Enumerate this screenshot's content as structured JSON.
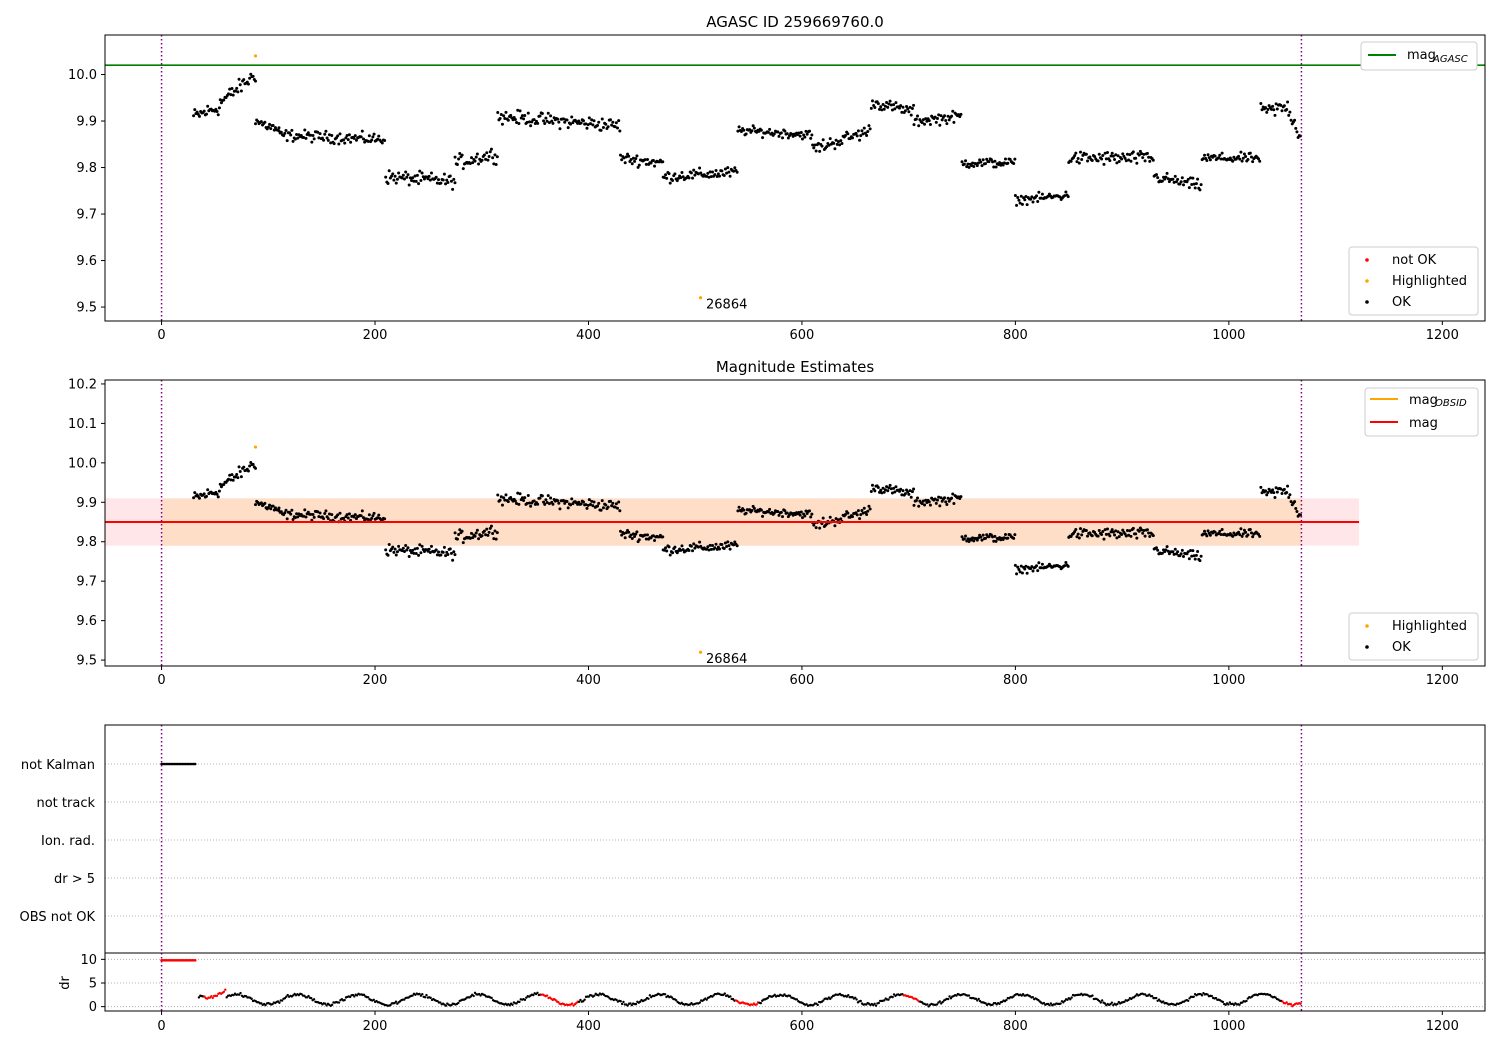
{
  "chart_data": [
    {
      "type": "scatter",
      "title": "AGASC ID 259669760.0",
      "xlim": [
        -53,
        1240
      ],
      "ylim": [
        9.47,
        10.085
      ],
      "xticks": [
        0,
        200,
        400,
        600,
        800,
        1000,
        1200
      ],
      "yticks": [
        9.5,
        9.6,
        9.7,
        9.8,
        9.9,
        10.0
      ],
      "yticklabels": [
        "9.5",
        "9.6",
        "9.7",
        "9.8",
        "9.9",
        "10.0"
      ],
      "grid": false,
      "vlines": [
        0,
        1068
      ],
      "hline": {
        "y": 10.02,
        "color": "#008000"
      },
      "legends": [
        {
          "placement": "top-right",
          "entries": [
            {
              "label": "mag",
              "sub": "AGASC",
              "color": "#008000",
              "kind": "line"
            }
          ]
        },
        {
          "placement": "bottom-right",
          "entries": [
            {
              "label": "not OK",
              "color": "#ff0000",
              "kind": "dot"
            },
            {
              "label": "Highlighted",
              "color": "#ffa500",
              "kind": "dot"
            },
            {
              "label": "OK",
              "color": "#000000",
              "kind": "dot"
            }
          ]
        }
      ],
      "series": [
        {
          "name": "OK",
          "segments": "ok"
        }
      ],
      "highlighted_points": [
        {
          "x": 88,
          "y": 10.04
        },
        {
          "x": 505,
          "y": 9.52
        }
      ],
      "annotations": [
        {
          "text": "26864",
          "x": 512,
          "y": 9.52
        }
      ]
    },
    {
      "type": "scatter",
      "title": "Magnitude Estimates",
      "xlim": [
        -53,
        1240
      ],
      "ylim": [
        9.485,
        10.21
      ],
      "xticks": [
        0,
        200,
        400,
        600,
        800,
        1000,
        1200
      ],
      "yticks": [
        9.5,
        9.6,
        9.7,
        9.8,
        9.9,
        10.0,
        10.1,
        10.2
      ],
      "yticklabels": [
        "9.5",
        "9.6",
        "9.7",
        "9.8",
        "9.9",
        "10.0",
        "10.1",
        "10.2"
      ],
      "grid": false,
      "vlines": [
        0,
        1068
      ],
      "mag_line": {
        "y": 9.85,
        "x_end": 1122,
        "color": "#ff0000"
      },
      "mag_band": {
        "y0": 9.79,
        "y1": 9.91,
        "x_end": 1122,
        "color": "#ffb6c1"
      },
      "obsid_band": {
        "y0": 9.79,
        "y1": 9.91,
        "x_start": 0,
        "x_end": 1068,
        "color": "#ffdab9"
      },
      "legends": [
        {
          "placement": "top-right",
          "entries": [
            {
              "label": "mag",
              "sub": "OBSID",
              "color": "#ffa500",
              "kind": "line"
            },
            {
              "label": "mag",
              "sub": "",
              "color": "#ff0000",
              "kind": "line"
            }
          ]
        },
        {
          "placement": "bottom-right",
          "entries": [
            {
              "label": "Highlighted",
              "color": "#ffa500",
              "kind": "dot"
            },
            {
              "label": "OK",
              "color": "#000000",
              "kind": "dot"
            }
          ]
        }
      ],
      "series": [
        {
          "name": "OK",
          "segments": "ok"
        }
      ],
      "highlighted_points": [
        {
          "x": 88,
          "y": 10.04
        },
        {
          "x": 505,
          "y": 9.52
        }
      ],
      "annotations": [
        {
          "text": "26864",
          "x": 512,
          "y": 9.52
        }
      ]
    },
    {
      "type": "scatter",
      "title": "",
      "xlim": [
        -53,
        1240
      ],
      "xticks": [
        0,
        200,
        400,
        600,
        800,
        1000,
        1200
      ],
      "flag_labels": [
        "not Kalman",
        "not track",
        "Ion. rad.",
        "dr > 5",
        "OBS not OK"
      ],
      "flag_points": [
        {
          "flag": "not Kalman",
          "x_start": 0,
          "x_end": 32
        }
      ],
      "dr_ylabel": "dr",
      "dr_yticks": [
        0,
        5,
        10
      ],
      "dr_ylim": [
        -0.5,
        10.5
      ],
      "vlines": [
        0,
        1068
      ],
      "dr_high": {
        "x_start": 0,
        "x_end": 32,
        "y": 9.8,
        "color": "#ff0000"
      }
    }
  ],
  "segments": [
    [
      30,
      55,
      9.91,
      9.93,
      0.02
    ],
    [
      55,
      88,
      9.94,
      10.0,
      0.02
    ],
    [
      88,
      110,
      9.9,
      9.88,
      0.015
    ],
    [
      110,
      210,
      9.87,
      9.86,
      0.015
    ],
    [
      210,
      275,
      9.78,
      9.77,
      0.018
    ],
    [
      275,
      315,
      9.81,
      9.83,
      0.02
    ],
    [
      315,
      430,
      9.91,
      9.89,
      0.018
    ],
    [
      430,
      470,
      9.82,
      9.81,
      0.015
    ],
    [
      470,
      540,
      9.78,
      9.79,
      0.015
    ],
    [
      540,
      610,
      9.88,
      9.87,
      0.012
    ],
    [
      610,
      665,
      9.84,
      9.88,
      0.018
    ],
    [
      665,
      705,
      9.94,
      9.92,
      0.015
    ],
    [
      705,
      750,
      9.9,
      9.91,
      0.015
    ],
    [
      750,
      800,
      9.81,
      9.81,
      0.013
    ],
    [
      800,
      850,
      9.73,
      9.74,
      0.012
    ],
    [
      850,
      930,
      9.82,
      9.82,
      0.018
    ],
    [
      930,
      975,
      9.78,
      9.76,
      0.015
    ],
    [
      975,
      1030,
      9.82,
      9.82,
      0.013
    ],
    [
      1030,
      1055,
      9.92,
      9.93,
      0.02
    ],
    [
      1055,
      1068,
      9.93,
      9.86,
      0.02
    ]
  ]
}
